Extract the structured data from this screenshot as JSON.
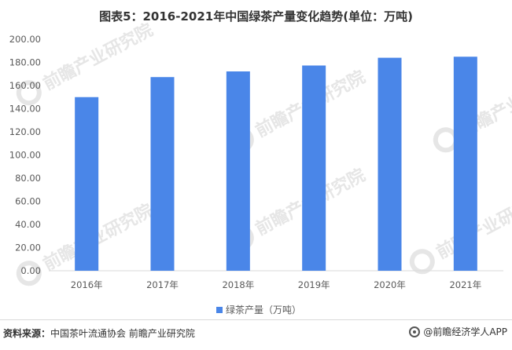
{
  "title": "图表5：2016-2021年中国绿茶产量变化趋势(单位：万吨)",
  "chart_data": {
    "type": "bar",
    "title": "图表5：2016-2021年中国绿茶产量变化趋势(单位：万吨)",
    "categories": [
      "2016年",
      "2017年",
      "2018年",
      "2019年",
      "2020年",
      "2021年"
    ],
    "series": [
      {
        "name": "绿茶产量（万吨）",
        "values": [
          150.0,
          167.3,
          172.2,
          177.3,
          184.0,
          184.9
        ],
        "color": "#4a86e8"
      }
    ],
    "y_ticks": [
      "0.00",
      "20.00",
      "40.00",
      "60.00",
      "80.00",
      "100.00",
      "120.00",
      "140.00",
      "160.00",
      "180.00",
      "200.00"
    ],
    "ylim": [
      0,
      200
    ],
    "grid": false,
    "legend_position": "bottom"
  },
  "source": {
    "label": "资料来源：",
    "text": "中国茶叶流通协会 前瞻产业研究院"
  },
  "brand": {
    "text": "@前瞻经济学人APP",
    "icon": "qianzhan-logo-icon"
  },
  "watermark": {
    "text": "前瞻产业研究院",
    "color": "#e6e6e6"
  }
}
